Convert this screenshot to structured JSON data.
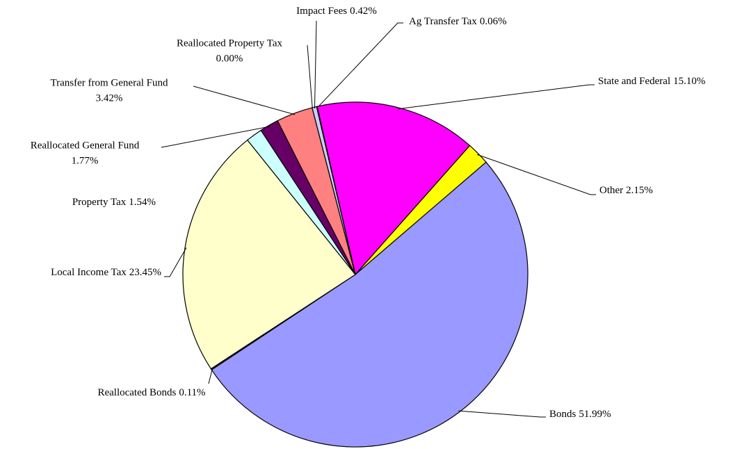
{
  "chart_data": {
    "type": "pie",
    "categories": [
      "Ag Transfer Tax",
      "State and Federal",
      "Other",
      "Bonds",
      "Reallocated Bonds",
      "Local Income Tax",
      "Property Tax",
      "Reallocated General Fund",
      "Transfer from General Fund",
      "Reallocated Property Tax",
      "Impact Fees"
    ],
    "values": [
      0.06,
      15.1,
      2.15,
      51.99,
      0.11,
      23.45,
      1.54,
      1.77,
      3.42,
      0,
      0.42
    ],
    "value_labels": [
      "0.06%",
      "15.10%",
      "2.15%",
      "51.99%",
      "0.11%",
      "23.45%",
      "1.54%",
      "1.77%",
      "3.42%",
      "0.00%",
      "0.42%"
    ],
    "colors": [
      "#c0c0c0",
      "#ff00ff",
      "#ffff00",
      "#9999ff",
      "#993366",
      "#ffffcc",
      "#ccffff",
      "#660066",
      "#ff8080",
      "#0066cc",
      "#ccccff"
    ]
  }
}
